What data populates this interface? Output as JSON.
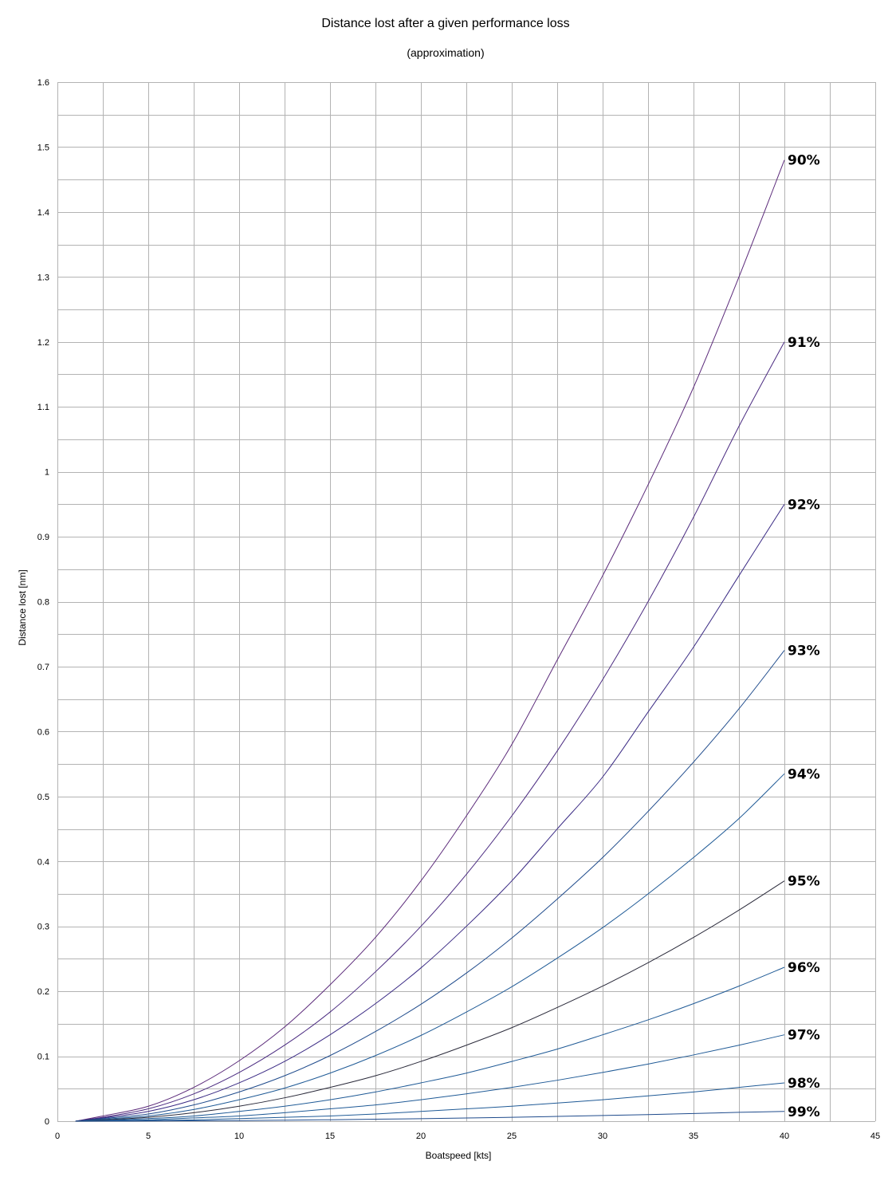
{
  "chart_data": {
    "type": "line",
    "title": "Distance lost after a given performance loss",
    "subtitle": "(approximation)",
    "xlabel": "Boatspeed [kts]",
    "ylabel": "Distance lost [nm]",
    "xlim": [
      0,
      45
    ],
    "ylim": [
      0,
      1.6
    ],
    "x_ticks": [
      "0",
      "5",
      "10",
      "15",
      "20",
      "25",
      "30",
      "35",
      "40",
      "45"
    ],
    "y_ticks": [
      "0",
      "0.1",
      "0.2",
      "0.3",
      "0.4",
      "0.5",
      "0.6",
      "0.7",
      "0.8",
      "0.9",
      "1",
      "1.1",
      "1.2",
      "1.3",
      "1.4",
      "1.5",
      "1.6"
    ],
    "grid": true,
    "x": [
      1,
      2.5,
      5,
      7.5,
      10,
      12.5,
      15,
      17.5,
      20,
      22.5,
      25,
      27.5,
      30,
      32.5,
      35,
      37.5,
      40
    ],
    "series": [
      {
        "name": "90%",
        "color": "#5b2a7a",
        "values": [
          0,
          0.008,
          0.023,
          0.052,
          0.093,
          0.145,
          0.21,
          0.283,
          0.37,
          0.47,
          0.58,
          0.71,
          0.84,
          0.98,
          1.13,
          1.3,
          1.48
        ]
      },
      {
        "name": "91%",
        "color": "#4a2a80",
        "values": [
          0,
          0.006,
          0.019,
          0.042,
          0.075,
          0.117,
          0.168,
          0.23,
          0.3,
          0.38,
          0.47,
          0.57,
          0.68,
          0.8,
          0.93,
          1.07,
          1.2
        ]
      },
      {
        "name": "92%",
        "color": "#3a2a84",
        "values": [
          0,
          0.005,
          0.015,
          0.033,
          0.059,
          0.092,
          0.133,
          0.181,
          0.236,
          0.3,
          0.37,
          0.45,
          0.53,
          0.63,
          0.73,
          0.84,
          0.95
        ]
      },
      {
        "name": "93%",
        "color": "#1f4b8c",
        "values": [
          0,
          0.004,
          0.011,
          0.025,
          0.045,
          0.07,
          0.101,
          0.138,
          0.18,
          0.228,
          0.282,
          0.342,
          0.406,
          0.477,
          0.553,
          0.635,
          0.725
        ]
      },
      {
        "name": "94%",
        "color": "#1f5a96",
        "values": [
          0,
          0.003,
          0.008,
          0.018,
          0.033,
          0.051,
          0.074,
          0.101,
          0.132,
          0.168,
          0.207,
          0.251,
          0.298,
          0.35,
          0.406,
          0.466,
          0.535
        ]
      },
      {
        "name": "95%",
        "color": "#2a2a3a",
        "values": [
          0,
          0.002,
          0.006,
          0.013,
          0.023,
          0.036,
          0.052,
          0.07,
          0.092,
          0.117,
          0.144,
          0.175,
          0.208,
          0.244,
          0.283,
          0.325,
          0.37
        ]
      },
      {
        "name": "96%",
        "color": "#1f5a96",
        "values": [
          0,
          0.0013,
          0.004,
          0.008,
          0.015,
          0.023,
          0.033,
          0.045,
          0.059,
          0.074,
          0.092,
          0.111,
          0.133,
          0.156,
          0.181,
          0.208,
          0.237
        ]
      },
      {
        "name": "97%",
        "color": "#1f5a96",
        "values": [
          0,
          0.0008,
          0.002,
          0.005,
          0.008,
          0.013,
          0.019,
          0.025,
          0.033,
          0.042,
          0.052,
          0.063,
          0.075,
          0.088,
          0.102,
          0.117,
          0.133
        ]
      },
      {
        "name": "98%",
        "color": "#1f5a96",
        "values": [
          0,
          0.0004,
          0.001,
          0.002,
          0.004,
          0.006,
          0.008,
          0.011,
          0.015,
          0.019,
          0.023,
          0.028,
          0.033,
          0.039,
          0.045,
          0.052,
          0.059
        ]
      },
      {
        "name": "99%",
        "color": "#1f4b8c",
        "values": [
          0,
          0.0001,
          0.0003,
          0.0006,
          0.001,
          0.0015,
          0.0022,
          0.003,
          0.0039,
          0.0049,
          0.006,
          0.0073,
          0.0087,
          0.0102,
          0.0118,
          0.0136,
          0.015
        ]
      }
    ]
  }
}
